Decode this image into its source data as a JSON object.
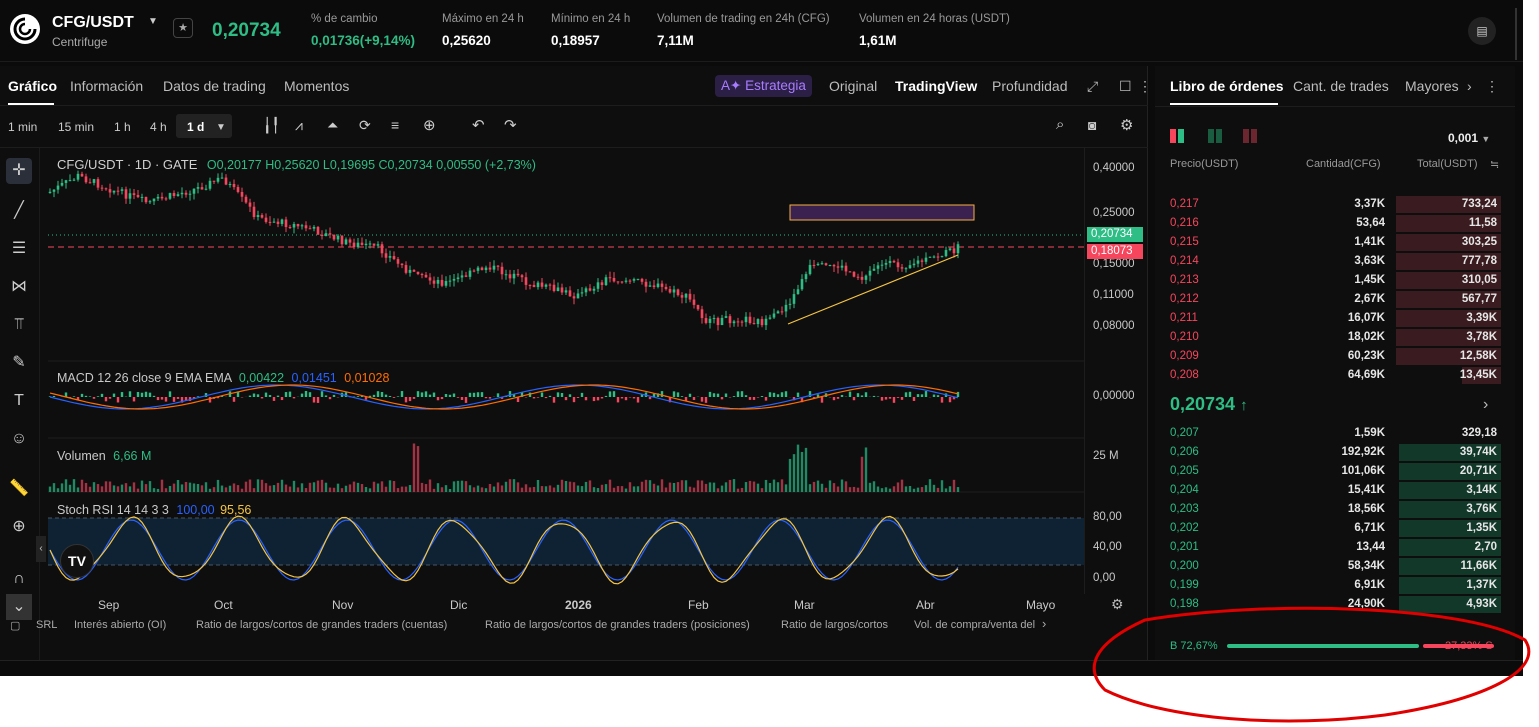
{
  "header": {
    "pair": "CFG/USDT",
    "subtitle": "Centrifuge",
    "last_price": "0,20734",
    "stats": [
      {
        "label": "% de cambio",
        "value": "0,01736(+9,14%)",
        "green": true
      },
      {
        "label": "Máximo en 24 h",
        "value": "0,25620"
      },
      {
        "label": "Mínimo en 24 h",
        "value": "0,18957"
      },
      {
        "label": "Volumen de trading en 24h (CFG)",
        "value": "7,11M"
      },
      {
        "label": "Volumen en 24 horas (USDT)",
        "value": "1,61M"
      }
    ]
  },
  "chart_tabs": [
    "Gráfico",
    "Información",
    "Datos de trading",
    "Momentos"
  ],
  "view_tabs": {
    "ai": "Estrategia",
    "original": "Original",
    "tradingview": "TradingView",
    "depth": "Profundidad"
  },
  "timeframes": [
    "1 min",
    "15 min",
    "1 h",
    "4 h",
    "1 d"
  ],
  "legend": {
    "symbol": "CFG/USDT · 1D · GATE",
    "ohlc": "O0,20177 H0,25620 L0,19695 C0,20734 0,00550 (+2,73%)",
    "macd_label": "MACD 12 26 close 9 EMA EMA",
    "macd_v1": "0,00422",
    "macd_v2": "0,01451",
    "macd_v3": "0,01028",
    "volume_label": "Volumen",
    "volume_value": "6,66 M",
    "stoch_label": "Stoch RSI 14 14 3 3",
    "stoch_v1": "100,00",
    "stoch_v2": "95,56"
  },
  "price_axis": {
    "ticks": [
      "0,40000",
      "0,25000",
      "0,15000",
      "0,11000",
      "0,08000"
    ],
    "last_tag": "0,20734",
    "line_tag": "0,18073",
    "macd_tick": "0,00000",
    "volume_tick": "25 M",
    "stoch_ticks": [
      "80,00",
      "40,00",
      "0,00"
    ]
  },
  "x_axis": [
    "Sep",
    "Oct",
    "Nov",
    "Dic",
    "2026",
    "Feb",
    "Mar",
    "Abr",
    "Mayo"
  ],
  "bottom_indicators": [
    "SRL",
    "Interés abierto (OI)",
    "Ratio de largos/cortos de grandes traders (cuentas)",
    "Ratio de largos/cortos de grandes traders (posiciones)",
    "Ratio de largos/cortos",
    "Vol. de compra/venta del"
  ],
  "orderbook": {
    "tabs": [
      "Libro de órdenes",
      "Cant. de trades",
      "Mayores"
    ],
    "precision": "0,001",
    "headers": {
      "price": "Precio(USDT)",
      "qty": "Cantidad(CFG)",
      "total": "Total(USDT)"
    },
    "asks": [
      {
        "p": "0,217",
        "q": "3,37K",
        "t": "733,24",
        "d": 0.95
      },
      {
        "p": "0,216",
        "q": "53,64",
        "t": "11,58",
        "d": 0.95
      },
      {
        "p": "0,215",
        "q": "1,41K",
        "t": "303,25",
        "d": 0.95
      },
      {
        "p": "0,214",
        "q": "3,63K",
        "t": "777,78",
        "d": 0.95
      },
      {
        "p": "0,213",
        "q": "1,45K",
        "t": "310,05",
        "d": 0.95
      },
      {
        "p": "0,212",
        "q": "2,67K",
        "t": "567,77",
        "d": 0.95
      },
      {
        "p": "0,211",
        "q": "16,07K",
        "t": "3,39K",
        "d": 0.95
      },
      {
        "p": "0,210",
        "q": "18,02K",
        "t": "3,78K",
        "d": 0.95
      },
      {
        "p": "0,209",
        "q": "60,23K",
        "t": "12,58K",
        "d": 0.95
      },
      {
        "p": "0,208",
        "q": "64,69K",
        "t": "13,45K",
        "d": 0.35
      }
    ],
    "mid": "0,20734",
    "bids": [
      {
        "p": "0,207",
        "q": "1,59K",
        "t": "329,18",
        "d": 0.0
      },
      {
        "p": "0,206",
        "q": "192,92K",
        "t": "39,74K",
        "d": 0.93
      },
      {
        "p": "0,205",
        "q": "101,06K",
        "t": "20,71K",
        "d": 0.93
      },
      {
        "p": "0,204",
        "q": "15,41K",
        "t": "3,14K",
        "d": 0.93
      },
      {
        "p": "0,203",
        "q": "18,56K",
        "t": "3,76K",
        "d": 0.93
      },
      {
        "p": "0,202",
        "q": "6,71K",
        "t": "1,35K",
        "d": 0.93
      },
      {
        "p": "0,201",
        "q": "13,44",
        "t": "2,70",
        "d": 0.93
      },
      {
        "p": "0,200",
        "q": "58,34K",
        "t": "11,66K",
        "d": 0.93
      },
      {
        "p": "0,199",
        "q": "6,91K",
        "t": "1,37K",
        "d": 0.93
      },
      {
        "p": "0,198",
        "q": "24,90K",
        "t": "4,93K",
        "d": 0.93
      }
    ],
    "buy_pct": "72,67%",
    "sell_pct": "27,33%",
    "buy_ratio": 0.7267
  },
  "colors": {
    "up": "#2ebd85",
    "down": "#f6465d",
    "accent": "#a87cff"
  }
}
